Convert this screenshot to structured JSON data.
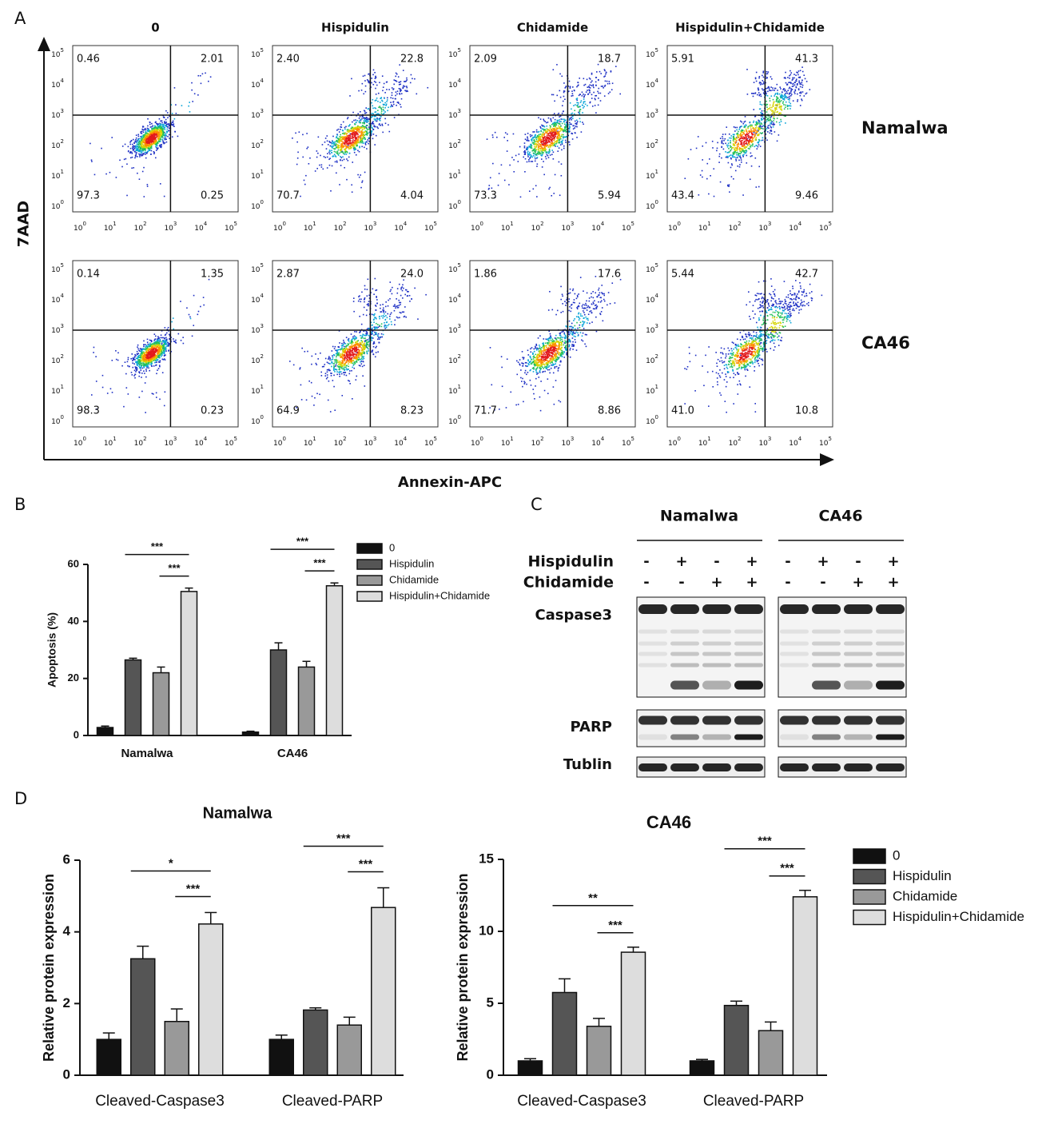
{
  "panel_labels": [
    "A",
    "B",
    "C",
    "D"
  ],
  "panel_a": {
    "columns": [
      "0",
      "Hispidulin",
      "Chidamide",
      "Hispidulin+Chidamide"
    ],
    "rows": [
      "Namalwa",
      "CA46"
    ],
    "y_label": "7AAD",
    "x_label": "Annexin-APC",
    "axis_ticks": [
      {
        "base": "10",
        "exponent": "0"
      },
      {
        "base": "10",
        "exponent": "1"
      },
      {
        "base": "10",
        "exponent": "2"
      },
      {
        "base": "10",
        "exponent": "3"
      },
      {
        "base": "10",
        "exponent": "4"
      },
      {
        "base": "10",
        "exponent": "5"
      }
    ],
    "quadrants": [
      [
        [
          "0.46",
          "2.01",
          "97.3",
          "0.25"
        ],
        [
          "2.40",
          "22.8",
          "70.7",
          "4.04"
        ],
        [
          "2.09",
          "18.7",
          "73.3",
          "5.94"
        ],
        [
          "5.91",
          "41.3",
          "43.4",
          "9.46"
        ]
      ],
      [
        [
          "0.14",
          "1.35",
          "98.3",
          "0.23"
        ],
        [
          "2.87",
          "24.0",
          "64.9",
          "8.23"
        ],
        [
          "1.86",
          "17.6",
          "71.7",
          "8.86"
        ],
        [
          "5.44",
          "42.7",
          "41.0",
          "10.8"
        ]
      ]
    ]
  },
  "panel_c": {
    "cell_lines": [
      "Namalwa",
      "CA46"
    ],
    "treatments": [
      {
        "name": "Hispidulin",
        "signs": [
          "-",
          "+",
          "-",
          "+"
        ]
      },
      {
        "name": "Chidamide",
        "signs": [
          "-",
          "-",
          "+",
          "+"
        ]
      }
    ],
    "bands": [
      "Caspase3",
      "PARP",
      "Tublin"
    ]
  },
  "chart_data": [
    {
      "type": "bar",
      "y_label": "Apoptosis (%)",
      "categories": [
        "Namalwa",
        "CA46"
      ],
      "series": [
        {
          "name": "0",
          "color": "#111111",
          "values": [
            2.8,
            1.2
          ],
          "errors": [
            0.5,
            0.3
          ]
        },
        {
          "name": "Hispidulin",
          "color": "#555555",
          "values": [
            26.5,
            30
          ],
          "errors": [
            0.6,
            2.5
          ]
        },
        {
          "name": "Chidamide",
          "color": "#999999",
          "values": [
            22,
            24
          ],
          "errors": [
            2,
            2
          ]
        },
        {
          "name": "Hispidulin+Chidamide",
          "color": "#dddddd",
          "values": [
            50.5,
            52.5
          ],
          "errors": [
            1.2,
            1
          ]
        }
      ],
      "ylim": [
        0,
        60
      ],
      "yticks": [
        0,
        20,
        40,
        60
      ],
      "legend": true,
      "significance": [
        [
          "***",
          "***"
        ],
        [
          "***",
          "***"
        ]
      ]
    },
    {
      "type": "bar",
      "title": "Namalwa",
      "y_label": "Relative protein expression",
      "categories": [
        "Cleaved-Caspase3",
        "Cleaved-PARP"
      ],
      "series": [
        {
          "color": "#111111",
          "values": [
            1.0,
            1.0
          ],
          "errors": [
            0.18,
            0.12
          ]
        },
        {
          "color": "#555555",
          "values": [
            3.25,
            1.82
          ],
          "errors": [
            0.35,
            0.06
          ]
        },
        {
          "color": "#999999",
          "values": [
            1.5,
            1.4
          ],
          "errors": [
            0.35,
            0.22
          ]
        },
        {
          "color": "#dddddd",
          "values": [
            4.22,
            4.68
          ],
          "errors": [
            0.32,
            0.55
          ]
        }
      ],
      "ylim": [
        0,
        6
      ],
      "yticks": [
        0,
        2,
        4,
        6
      ],
      "legend": false,
      "significance": [
        [
          "*",
          "***"
        ],
        [
          "***",
          "***"
        ]
      ]
    },
    {
      "type": "bar",
      "title": "CA46",
      "y_label": "Relative protein expression",
      "categories": [
        "Cleaved-Caspase3",
        "Cleaved-PARP"
      ],
      "series": [
        {
          "name": "0",
          "color": "#111111",
          "values": [
            1.0,
            1.0
          ],
          "errors": [
            0.15,
            0.1
          ]
        },
        {
          "name": "Hispidulin",
          "color": "#555555",
          "values": [
            5.75,
            4.85
          ],
          "errors": [
            0.95,
            0.3
          ]
        },
        {
          "name": "Chidamide",
          "color": "#999999",
          "values": [
            3.4,
            3.1
          ],
          "errors": [
            0.55,
            0.6
          ]
        },
        {
          "name": "Hispidulin+Chidamide",
          "color": "#dddddd",
          "values": [
            8.55,
            12.4
          ],
          "errors": [
            0.35,
            0.45
          ]
        }
      ],
      "ylim": [
        0,
        15
      ],
      "yticks": [
        0,
        5,
        10,
        15
      ],
      "legend": true,
      "significance": [
        [
          "**",
          "***"
        ],
        [
          "***",
          "***"
        ]
      ]
    }
  ]
}
